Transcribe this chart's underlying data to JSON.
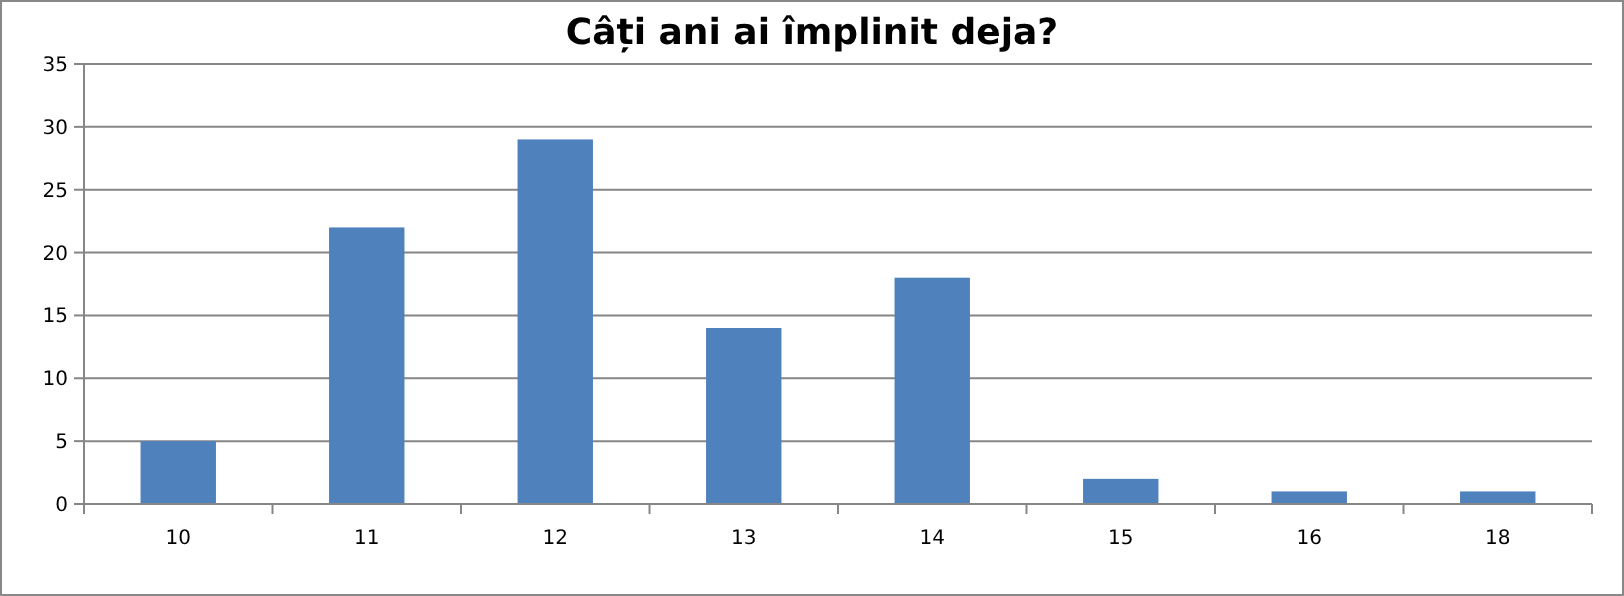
{
  "chart_data": {
    "type": "bar",
    "title": "Câți ani ai împlinit deja?",
    "categories": [
      "10",
      "11",
      "12",
      "13",
      "14",
      "15",
      "16",
      "18"
    ],
    "values": [
      5,
      22,
      29,
      14,
      18,
      2,
      1,
      1
    ],
    "color": "#4f81bd",
    "ylim": [
      0,
      35
    ],
    "yticks": [
      0,
      5,
      10,
      15,
      20,
      25,
      30,
      35
    ],
    "grid": "y"
  }
}
